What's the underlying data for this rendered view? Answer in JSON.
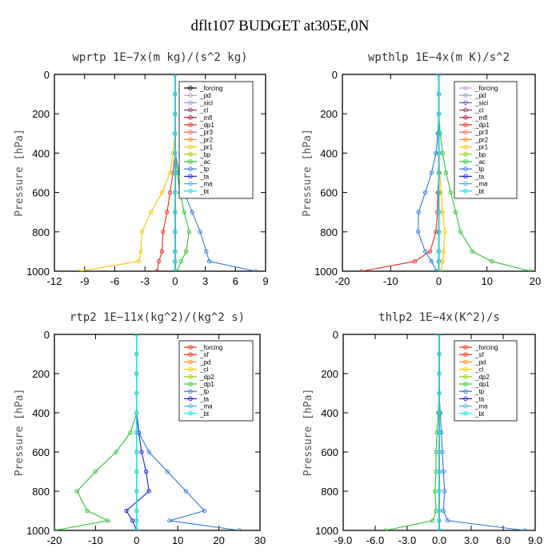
{
  "title": "dflt107  BUDGET at305E,0N",
  "chart_data": [
    {
      "type": "line",
      "title": "wprtp   1E−7x(m kg)/(s^2 kg)",
      "ylabel": "Pressure [hPa]",
      "xlim": [
        -12,
        9
      ],
      "ylim": [
        1000,
        0
      ],
      "xticks": [
        "-12",
        "-9",
        "-6",
        "-3",
        "0",
        "3",
        "6",
        "9"
      ],
      "yticks": [
        "0",
        "200",
        "400",
        "600",
        "800",
        "1000"
      ],
      "y": [
        0,
        100,
        200,
        300,
        400,
        500,
        600,
        700,
        800,
        900,
        950,
        1000
      ],
      "series": [
        {
          "name": "_forcing",
          "color": "#000000",
          "values": [
            0,
            0,
            0,
            0,
            0,
            0,
            0,
            0,
            0,
            0,
            0,
            0
          ]
        },
        {
          "name": "_pd",
          "color": "#c58fd0",
          "values": [
            0,
            0,
            0,
            0,
            0,
            0,
            0,
            0,
            0,
            0,
            0,
            0
          ]
        },
        {
          "name": "_sicl",
          "color": "#9a9ad6",
          "values": [
            0,
            0,
            0,
            0,
            0,
            0,
            0,
            0,
            0,
            0,
            0,
            0
          ]
        },
        {
          "name": "_cl",
          "color": "#8b2b7a",
          "values": [
            0,
            0,
            0,
            0,
            0,
            0,
            0,
            0,
            0,
            0,
            0,
            0
          ]
        },
        {
          "name": "_mfl",
          "color": "#b0124a",
          "values": [
            0,
            0,
            0,
            0,
            0,
            0,
            0,
            0,
            0,
            0,
            0,
            0
          ]
        },
        {
          "name": "_dp1",
          "color": "#e8281e",
          "values": [
            0,
            0,
            0,
            0,
            0,
            -0.2,
            -0.5,
            -0.8,
            -1.2,
            -1.3,
            -1.6,
            -1.8
          ]
        },
        {
          "name": "_pr3",
          "color": "#f25a5a",
          "values": [
            0,
            0,
            0,
            0,
            0,
            0,
            0,
            0,
            0,
            0,
            0,
            0
          ]
        },
        {
          "name": "_pr2",
          "color": "#ff8c1a",
          "values": [
            0,
            0,
            0,
            0,
            0,
            0,
            0,
            0,
            0,
            0,
            0,
            0
          ]
        },
        {
          "name": "_pr1",
          "color": "#f5c400",
          "values": [
            0,
            0,
            0,
            0,
            -0.2,
            -0.5,
            -1.3,
            -2.4,
            -3.3,
            -3.4,
            -3.6,
            -9.5
          ]
        },
        {
          "name": "_bp",
          "color": "#9ad000",
          "values": [
            0,
            0,
            0,
            0,
            0,
            0,
            0,
            0,
            0,
            0,
            0,
            0
          ]
        },
        {
          "name": "_ac",
          "color": "#2fc12f",
          "values": [
            0,
            0,
            0,
            0,
            0,
            0.2,
            0.5,
            0.9,
            1.4,
            1.1,
            0.6,
            0.2
          ]
        },
        {
          "name": "_tp",
          "color": "#2d7ad6",
          "values": [
            0,
            0,
            0,
            0,
            0,
            0.4,
            0.9,
            1.7,
            2.5,
            3.1,
            3.4,
            8.0
          ]
        },
        {
          "name": "_ta",
          "color": "#1c1cdc",
          "values": [
            0,
            0,
            0,
            0,
            0,
            0,
            0,
            0,
            0,
            0,
            0,
            0
          ]
        },
        {
          "name": "_ma",
          "color": "#48aee0",
          "values": [
            0,
            0,
            0,
            0,
            0,
            0,
            0,
            0,
            0,
            0,
            0,
            0
          ]
        },
        {
          "name": "_bt",
          "color": "#19e0e8",
          "values": [
            0,
            0,
            0,
            0,
            0,
            0,
            0,
            0,
            0,
            0,
            0,
            0
          ]
        }
      ]
    },
    {
      "type": "line",
      "title": "wpthlp   1E−4x(m K)/s^2",
      "ylabel": "Pressure [hPa]",
      "xlim": [
        -20,
        20
      ],
      "ylim": [
        1000,
        0
      ],
      "xticks": [
        "-20",
        "-10",
        "0",
        "10",
        "20"
      ],
      "yticks": [
        "0",
        "200",
        "400",
        "600",
        "800",
        "1000"
      ],
      "y": [
        0,
        100,
        200,
        300,
        400,
        500,
        600,
        700,
        800,
        900,
        950,
        1000
      ],
      "series": [
        {
          "name": "_forcing",
          "color": "#c58fd0",
          "values": [
            0,
            0,
            0,
            0,
            0,
            0,
            0,
            0,
            0,
            0,
            0,
            0
          ]
        },
        {
          "name": "_pd",
          "color": "#9a9ad6",
          "values": [
            0,
            0,
            0,
            0,
            0,
            0,
            0,
            0,
            0,
            0,
            0,
            0
          ]
        },
        {
          "name": "_sicl",
          "color": "#6b50c0",
          "values": [
            0,
            0,
            0,
            0,
            0,
            0,
            0,
            0,
            0,
            0,
            0,
            0
          ]
        },
        {
          "name": "_cl",
          "color": "#8b2b7a",
          "values": [
            0,
            0,
            0,
            0,
            0,
            0,
            0,
            0,
            0,
            0,
            0,
            0
          ]
        },
        {
          "name": "_mfl",
          "color": "#b0124a",
          "values": [
            0,
            0,
            0,
            0,
            0,
            0,
            0,
            0,
            0,
            0,
            0,
            0
          ]
        },
        {
          "name": "_dp1",
          "color": "#e8281e",
          "values": [
            0,
            0,
            0,
            0,
            0,
            0,
            -0.2,
            -0.3,
            -0.6,
            -1.8,
            -5,
            -16
          ]
        },
        {
          "name": "_pr3",
          "color": "#f25a5a",
          "values": [
            0,
            0,
            0,
            0,
            0,
            0,
            0,
            0,
            0,
            0,
            0,
            0
          ]
        },
        {
          "name": "_pr2",
          "color": "#ff8c1a",
          "values": [
            0,
            0,
            0,
            0,
            0,
            0,
            0,
            0,
            0,
            0,
            0,
            0
          ]
        },
        {
          "name": "_pr1",
          "color": "#f5c400",
          "values": [
            0,
            0,
            0,
            0,
            0,
            0.2,
            0.5,
            0.8,
            1.3,
            1.0,
            0.8,
            0.5
          ]
        },
        {
          "name": "_bp",
          "color": "#9ad000",
          "values": [
            0,
            0,
            0,
            0,
            0,
            0,
            0,
            0,
            0,
            0,
            0,
            0
          ]
        },
        {
          "name": "_ac",
          "color": "#2fc12f",
          "values": [
            0,
            0,
            0,
            0.3,
            0.8,
            1.5,
            2.5,
            3.5,
            4.5,
            7,
            11,
            19
          ]
        },
        {
          "name": "_tp",
          "color": "#2d7ad6",
          "values": [
            0,
            0,
            0,
            -0.2,
            -0.6,
            -1.5,
            -2.8,
            -4.2,
            -4.3,
            -2.8,
            -1.5,
            -0.5
          ]
        },
        {
          "name": "_ta",
          "color": "#1c1cdc",
          "values": [
            0,
            0,
            0,
            0,
            0,
            0,
            0,
            0,
            0,
            0,
            0,
            0
          ]
        },
        {
          "name": "_ma",
          "color": "#48aee0",
          "values": [
            0,
            0,
            0,
            0,
            0,
            0,
            0,
            0,
            0,
            0,
            0,
            0
          ]
        },
        {
          "name": "_bt",
          "color": "#19e0e8",
          "values": [
            0,
            0,
            0,
            0,
            0,
            0,
            0,
            0,
            0,
            0,
            0,
            0
          ]
        }
      ]
    },
    {
      "type": "line",
      "title": "rtp2   1E−11x(kg^2)/(kg^2 s)",
      "ylabel": "Pressure [hPa]",
      "xlim": [
        -20,
        30
      ],
      "ylim": [
        1000,
        0
      ],
      "xticks": [
        "-20",
        "-10",
        "0",
        "10",
        "20",
        "30"
      ],
      "yticks": [
        "0",
        "200",
        "400",
        "600",
        "800",
        "1000"
      ],
      "y": [
        0,
        100,
        200,
        300,
        400,
        500,
        600,
        700,
        800,
        900,
        950,
        1000
      ],
      "series": [
        {
          "name": "_forcing",
          "color": "#e8281e",
          "values": [
            0,
            0,
            0,
            0,
            0,
            0,
            0,
            0,
            0,
            0,
            0,
            0
          ]
        },
        {
          "name": "_sf",
          "color": "#e8281e",
          "values": [
            0,
            0,
            0,
            0,
            0,
            0,
            0,
            0,
            0,
            0,
            0,
            0
          ]
        },
        {
          "name": "_pd",
          "color": "#ff8c1a",
          "values": [
            0,
            0,
            0,
            0,
            0,
            0,
            0,
            0,
            0,
            0,
            0,
            0
          ]
        },
        {
          "name": "_cl",
          "color": "#f5c400",
          "values": [
            0,
            0,
            0,
            0,
            0,
            0,
            0,
            0,
            0,
            0,
            0,
            0
          ]
        },
        {
          "name": "_dp2",
          "color": "#9ad000",
          "values": [
            0,
            0,
            0,
            0,
            0,
            0,
            0,
            0,
            0,
            0,
            0,
            0
          ]
        },
        {
          "name": "_dp1",
          "color": "#2fc12f",
          "values": [
            0,
            0,
            0,
            0,
            0,
            -1.5,
            -5,
            -10,
            -14.5,
            -12,
            -7,
            -20
          ]
        },
        {
          "name": "_tp",
          "color": "#2d7ad6",
          "values": [
            0,
            0,
            0,
            0,
            0,
            0.5,
            3,
            7.5,
            12,
            16.5,
            8,
            25
          ]
        },
        {
          "name": "_ta",
          "color": "#1c1cdc",
          "values": [
            0,
            0,
            0,
            0,
            0,
            0.5,
            1.2,
            2.3,
            3,
            -2.5,
            -1,
            0
          ]
        },
        {
          "name": "_ma",
          "color": "#48aee0",
          "values": [
            0,
            0,
            0,
            0,
            0,
            0,
            0,
            0,
            0,
            0,
            0,
            0
          ]
        },
        {
          "name": "_bt",
          "color": "#19e0e8",
          "values": [
            0,
            0,
            0,
            0,
            0,
            0,
            0,
            0,
            0,
            0,
            0,
            0
          ]
        }
      ]
    },
    {
      "type": "line",
      "title": "thlp2   1E−4x(K^2)/s",
      "ylabel": "Pressure [hPa]",
      "xlim": [
        -9,
        9
      ],
      "ylim": [
        1000,
        0
      ],
      "xticks": [
        "-9.0",
        "-6.0",
        "-3.0",
        "0.0",
        "3.0",
        "6.0",
        "9.0"
      ],
      "yticks": [
        "0",
        "200",
        "400",
        "600",
        "800",
        "1000"
      ],
      "y": [
        0,
        100,
        200,
        300,
        400,
        500,
        600,
        700,
        800,
        900,
        950,
        1000
      ],
      "series": [
        {
          "name": "_forcing",
          "color": "#e8281e",
          "values": [
            0,
            0,
            0,
            0,
            0,
            0,
            0,
            0,
            0,
            0,
            0,
            0
          ]
        },
        {
          "name": "_sf",
          "color": "#e8281e",
          "values": [
            0,
            0,
            0,
            0,
            0,
            0,
            0,
            0,
            0,
            0,
            0,
            0
          ]
        },
        {
          "name": "_pd",
          "color": "#ff8c1a",
          "values": [
            0,
            0,
            0,
            0,
            0,
            0,
            0,
            0,
            0,
            0,
            0,
            0
          ]
        },
        {
          "name": "_cl",
          "color": "#f5c400",
          "values": [
            0,
            0,
            0,
            0,
            0,
            0,
            0,
            0,
            0,
            0,
            0,
            0
          ]
        },
        {
          "name": "_dp2",
          "color": "#9ad000",
          "values": [
            0,
            0,
            0,
            0,
            0,
            0,
            0,
            0,
            0,
            0,
            0,
            0
          ]
        },
        {
          "name": "_dp1",
          "color": "#2fc12f",
          "values": [
            0,
            0,
            0,
            0,
            -0.1,
            -0.2,
            -0.3,
            -0.3,
            -0.4,
            -0.3,
            -0.6,
            -5
          ]
        },
        {
          "name": "_tp",
          "color": "#2d7ad6",
          "values": [
            0,
            0,
            0,
            0,
            0.1,
            0.2,
            0.3,
            0.4,
            0.5,
            0.4,
            0.8,
            8
          ]
        },
        {
          "name": "_ta",
          "color": "#1c1cdc",
          "values": [
            0,
            0,
            0,
            0,
            0,
            0,
            0,
            0,
            0,
            0,
            0,
            0
          ]
        },
        {
          "name": "_ma",
          "color": "#48aee0",
          "values": [
            0,
            0,
            0,
            0,
            0,
            0,
            0,
            0,
            0,
            0,
            0,
            0
          ]
        },
        {
          "name": "_bt",
          "color": "#19e0e8",
          "values": [
            0,
            0,
            0,
            0,
            0,
            0,
            0,
            0,
            0,
            0,
            0,
            0
          ]
        }
      ]
    }
  ]
}
